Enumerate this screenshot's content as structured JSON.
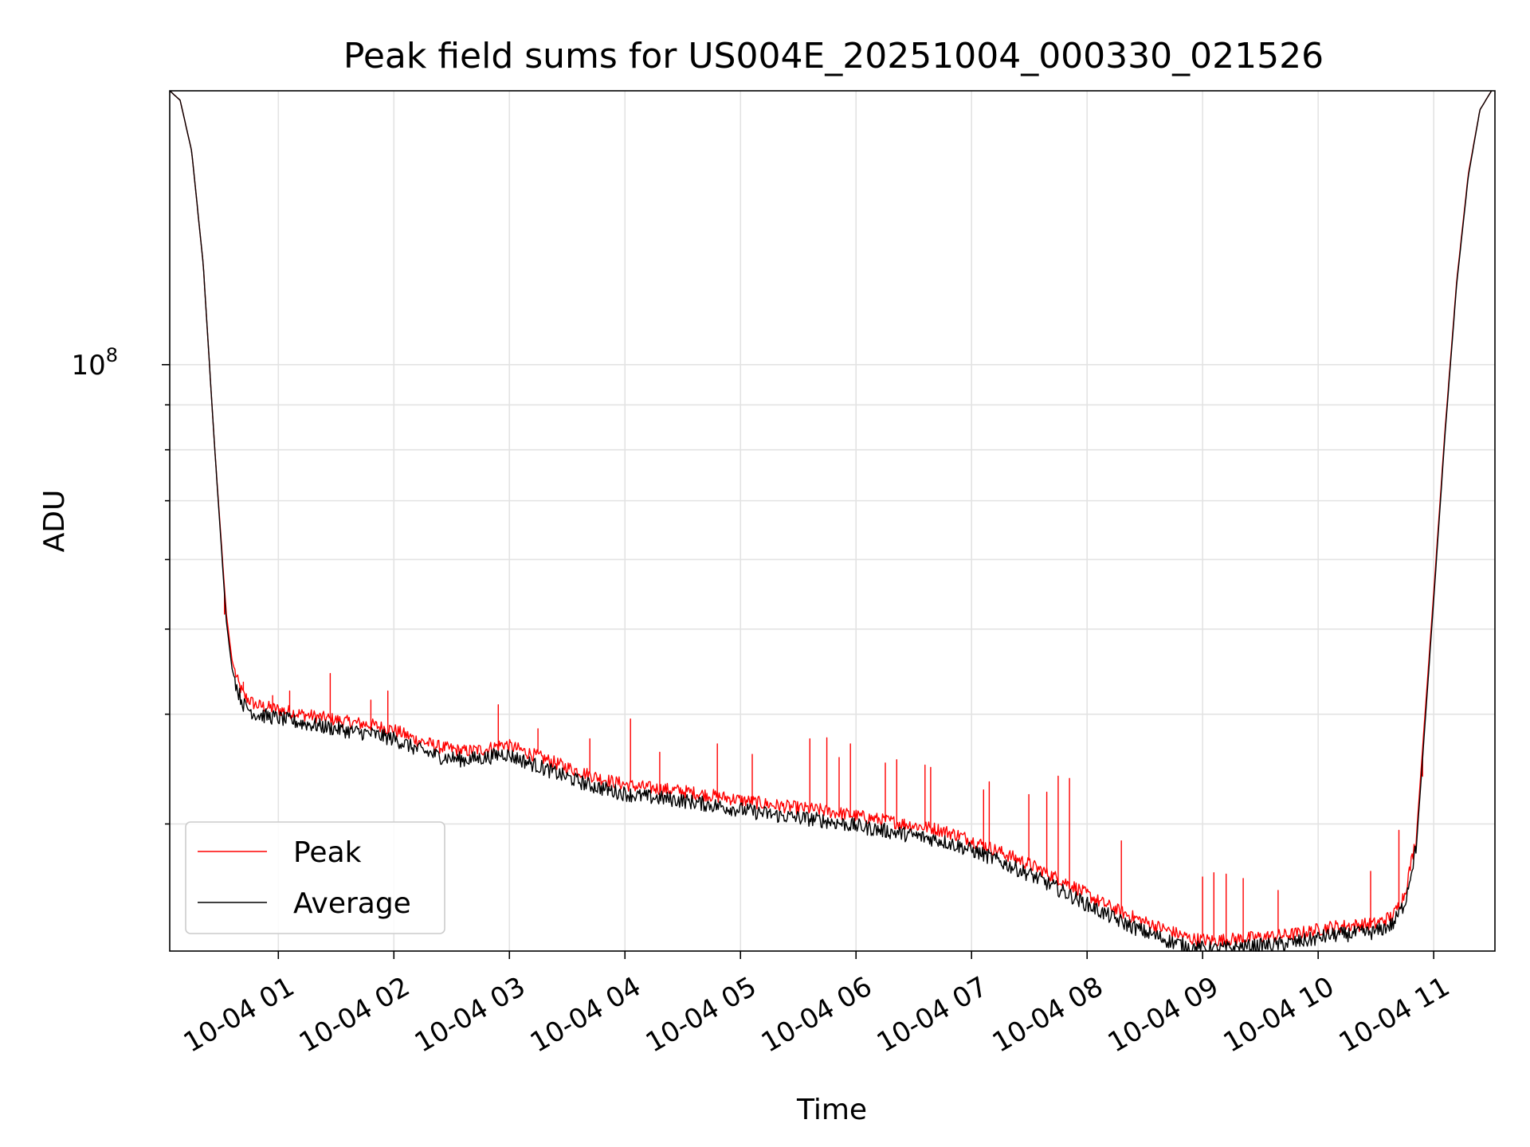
{
  "chart_data": {
    "type": "line",
    "title": "Peak field sums for US004E_20251004_000330_021526",
    "xlabel": "Time",
    "ylabel": "ADU",
    "yscale": "log",
    "grid": true,
    "legend_position": "lower-left",
    "x_unit": "hours since 10-04 00:00",
    "xlim": [
      0.06,
      11.53
    ],
    "ylim": [
      21500000,
      205000000
    ],
    "x_ticks": [
      1,
      2,
      3,
      4,
      5,
      6,
      7,
      8,
      9,
      10,
      11
    ],
    "x_tick_labels": [
      "10-04 01",
      "10-04 02",
      "10-04 03",
      "10-04 04",
      "10-04 05",
      "10-04 06",
      "10-04 07",
      "10-04 08",
      "10-04 09",
      "10-04 10",
      "10-04 11"
    ],
    "y_major_tick": {
      "value": 100000000,
      "base": "10",
      "exponent": "8"
    },
    "y_minor_ticks": [
      30000000,
      40000000,
      50000000,
      60000000,
      70000000,
      80000000,
      90000000
    ],
    "series": [
      {
        "name": "Peak",
        "color": "#ff0000",
        "x": [
          0.06,
          0.15,
          0.25,
          0.35,
          0.45,
          0.55,
          0.6,
          0.65,
          0.7,
          0.8,
          1.0,
          1.2,
          1.4,
          1.6,
          1.8,
          2.0,
          2.2,
          2.4,
          2.6,
          2.8,
          2.95,
          3.1,
          3.3,
          3.5,
          3.7,
          3.9,
          4.1,
          4.3,
          4.5,
          4.7,
          4.9,
          5.1,
          5.3,
          5.5,
          5.7,
          5.9,
          6.1,
          6.3,
          6.5,
          6.7,
          6.9,
          7.1,
          7.3,
          7.5,
          7.7,
          7.9,
          8.1,
          8.3,
          8.5,
          8.7,
          8.9,
          9.1,
          9.3,
          9.5,
          9.7,
          9.9,
          10.1,
          10.3,
          10.5,
          10.65,
          10.75,
          10.85,
          10.9,
          11.0,
          11.1,
          11.2,
          11.3,
          11.4,
          11.5
        ],
        "values": [
          205000000,
          200000000,
          175000000,
          130000000,
          80000000,
          52000000,
          46000000,
          43500000,
          42000000,
          41000000,
          40500000,
          40000000,
          39600000,
          39200000,
          38900000,
          38400000,
          37400000,
          36700000,
          36300000,
          36500000,
          37000000,
          36400000,
          35600000,
          34800000,
          34100000,
          33500000,
          33100000,
          32900000,
          32700000,
          32400000,
          32100000,
          31800000,
          31500000,
          31300000,
          31100000,
          30800000,
          30500000,
          30200000,
          29900000,
          29600000,
          29100000,
          28400000,
          27700000,
          27000000,
          26200000,
          25400000,
          24500000,
          23800000,
          23200000,
          22700000,
          22200000,
          22100000,
          22200000,
          22300000,
          22400000,
          22600000,
          22900000,
          23000000,
          23100000,
          23600000,
          25000000,
          29000000,
          36000000,
          55000000,
          85000000,
          125000000,
          165000000,
          195000000,
          205000000
        ],
        "spikes": [
          {
            "x": 0.53,
            "value": 52000000
          },
          {
            "x": 0.7,
            "value": 43500000
          },
          {
            "x": 0.95,
            "value": 42000000
          },
          {
            "x": 1.1,
            "value": 42500000
          },
          {
            "x": 1.45,
            "value": 44500000
          },
          {
            "x": 1.8,
            "value": 41500000
          },
          {
            "x": 1.95,
            "value": 42500000
          },
          {
            "x": 2.9,
            "value": 41000000
          },
          {
            "x": 3.25,
            "value": 38500000
          },
          {
            "x": 3.7,
            "value": 37500000
          },
          {
            "x": 4.05,
            "value": 39500000
          },
          {
            "x": 4.3,
            "value": 36200000
          },
          {
            "x": 4.8,
            "value": 37000000
          },
          {
            "x": 5.1,
            "value": 36000000
          },
          {
            "x": 5.6,
            "value": 37500000
          },
          {
            "x": 5.75,
            "value": 37600000
          },
          {
            "x": 5.85,
            "value": 35700000
          },
          {
            "x": 5.95,
            "value": 37000000
          },
          {
            "x": 6.25,
            "value": 35200000
          },
          {
            "x": 6.35,
            "value": 35500000
          },
          {
            "x": 6.6,
            "value": 35000000
          },
          {
            "x": 6.65,
            "value": 34800000
          },
          {
            "x": 7.1,
            "value": 32800000
          },
          {
            "x": 7.15,
            "value": 33500000
          },
          {
            "x": 7.5,
            "value": 32400000
          },
          {
            "x": 7.65,
            "value": 32600000
          },
          {
            "x": 7.75,
            "value": 34000000
          },
          {
            "x": 7.85,
            "value": 33800000
          },
          {
            "x": 8.3,
            "value": 28700000
          },
          {
            "x": 9.0,
            "value": 26100000
          },
          {
            "x": 9.1,
            "value": 26400000
          },
          {
            "x": 9.2,
            "value": 26300000
          },
          {
            "x": 9.35,
            "value": 26000000
          },
          {
            "x": 9.65,
            "value": 25200000
          },
          {
            "x": 10.45,
            "value": 26500000
          },
          {
            "x": 10.7,
            "value": 29500000
          },
          {
            "x": 10.9,
            "value": 34000000
          }
        ]
      },
      {
        "name": "Average",
        "color": "#000000",
        "x": [
          0.06,
          0.15,
          0.25,
          0.35,
          0.45,
          0.55,
          0.6,
          0.65,
          0.7,
          0.8,
          1.0,
          1.2,
          1.4,
          1.6,
          1.8,
          2.0,
          2.2,
          2.4,
          2.6,
          2.8,
          2.95,
          3.1,
          3.3,
          3.5,
          3.7,
          3.9,
          4.1,
          4.3,
          4.5,
          4.7,
          4.9,
          5.1,
          5.3,
          5.5,
          5.7,
          5.9,
          6.1,
          6.3,
          6.5,
          6.7,
          6.9,
          7.1,
          7.3,
          7.5,
          7.7,
          7.9,
          8.1,
          8.3,
          8.5,
          8.7,
          8.9,
          9.1,
          9.3,
          9.5,
          9.7,
          9.9,
          10.1,
          10.3,
          10.5,
          10.65,
          10.75,
          10.85,
          10.9,
          11.0,
          11.1,
          11.2,
          11.3,
          11.4,
          11.5
        ],
        "values": [
          205000000,
          200000000,
          175000000,
          130000000,
          80000000,
          51000000,
          45000000,
          42500000,
          41000000,
          40000000,
          39600000,
          39100000,
          38700000,
          38300000,
          38000000,
          37500000,
          36500000,
          35800000,
          35500000,
          35700000,
          36100000,
          35500000,
          34700000,
          33900000,
          33200000,
          32700000,
          32300000,
          32100000,
          31900000,
          31600000,
          31300000,
          31000000,
          30700000,
          30500000,
          30300000,
          30000000,
          29700000,
          29400000,
          29100000,
          28800000,
          28300000,
          27700000,
          27000000,
          26300000,
          25500000,
          24700000,
          23900000,
          23200000,
          22600000,
          22100000,
          21700000,
          21600000,
          21700000,
          21800000,
          21900000,
          22100000,
          22400000,
          22500000,
          22600000,
          23100000,
          24400000,
          28300000,
          35000000,
          54000000,
          84000000,
          124000000,
          164000000,
          195000000,
          205000000
        ]
      }
    ]
  }
}
